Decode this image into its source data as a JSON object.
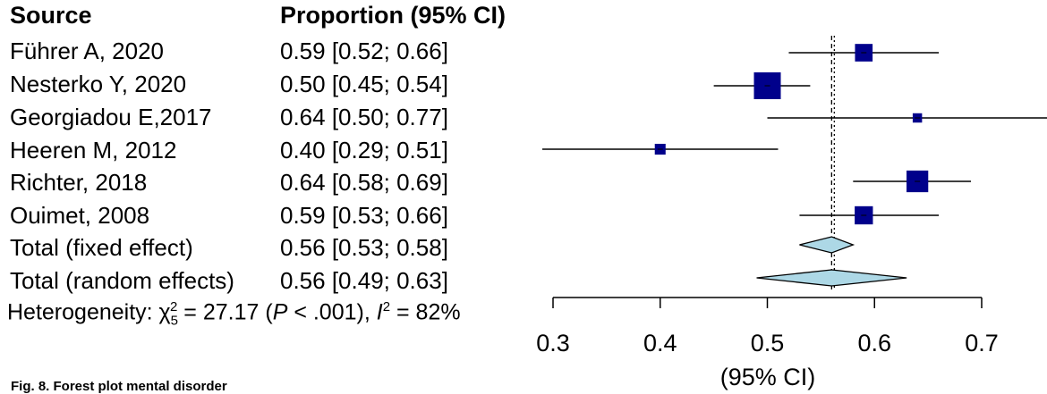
{
  "headers": {
    "source": "Source",
    "proportion": "Proportion (95% CI)"
  },
  "heterogeneity": {
    "prefix": "Heterogeneity: χ",
    "chi_sub": "5",
    "chi_sup": "2",
    "mid": " = 27.17 (",
    "p_label": "P",
    "p_rest": " < .001), ",
    "i_label": "I",
    "i_sup": "2",
    "i_rest": " = 82%"
  },
  "caption": "Fig. 8. Forest plot mental disorder",
  "chart_data": {
    "type": "forest",
    "xlabel": "(95% CI)",
    "xlim": [
      0.3,
      0.7
    ],
    "xticks": [
      "0.3",
      "0.4",
      "0.5",
      "0.6",
      "0.7"
    ],
    "reference_lines": {
      "fixed": 0.56,
      "random": 0.5625
    },
    "studies": [
      {
        "name": "Führer A, 2020",
        "label": "0.59 [0.52; 0.66]",
        "est": 0.59,
        "lo": 0.52,
        "hi": 0.66,
        "weight": 0.55
      },
      {
        "name": "Nesterko Y, 2020",
        "label": "0.50 [0.45; 0.54]",
        "est": 0.5,
        "lo": 0.45,
        "hi": 0.54,
        "weight": 1.0
      },
      {
        "name": "Georgiadou E,2017",
        "label": "0.64 [0.50; 0.77]",
        "est": 0.64,
        "lo": 0.5,
        "hi": 0.77,
        "weight": 0.15
      },
      {
        "name": "Heeren M, 2012",
        "label": "0.40 [0.29; 0.51]",
        "est": 0.4,
        "lo": 0.29,
        "hi": 0.51,
        "weight": 0.22
      },
      {
        "name": "Richter, 2018",
        "label": "0.64 [0.58; 0.69]",
        "est": 0.64,
        "lo": 0.58,
        "hi": 0.69,
        "weight": 0.75
      },
      {
        "name": "Ouimet, 2008",
        "label": "0.59 [0.53; 0.66]",
        "est": 0.59,
        "lo": 0.53,
        "hi": 0.66,
        "weight": 0.58
      }
    ],
    "totals": [
      {
        "name": "Total (fixed effect)",
        "label": "0.56 [0.53; 0.58]",
        "est": 0.56,
        "lo": 0.53,
        "hi": 0.58
      },
      {
        "name": "Total (random effects)",
        "label": "0.56 [0.49; 0.63]",
        "est": 0.56,
        "lo": 0.49,
        "hi": 0.63
      }
    ],
    "colors": {
      "box": "#00008b",
      "diamond": "#add8e6",
      "line": "#000000"
    }
  }
}
